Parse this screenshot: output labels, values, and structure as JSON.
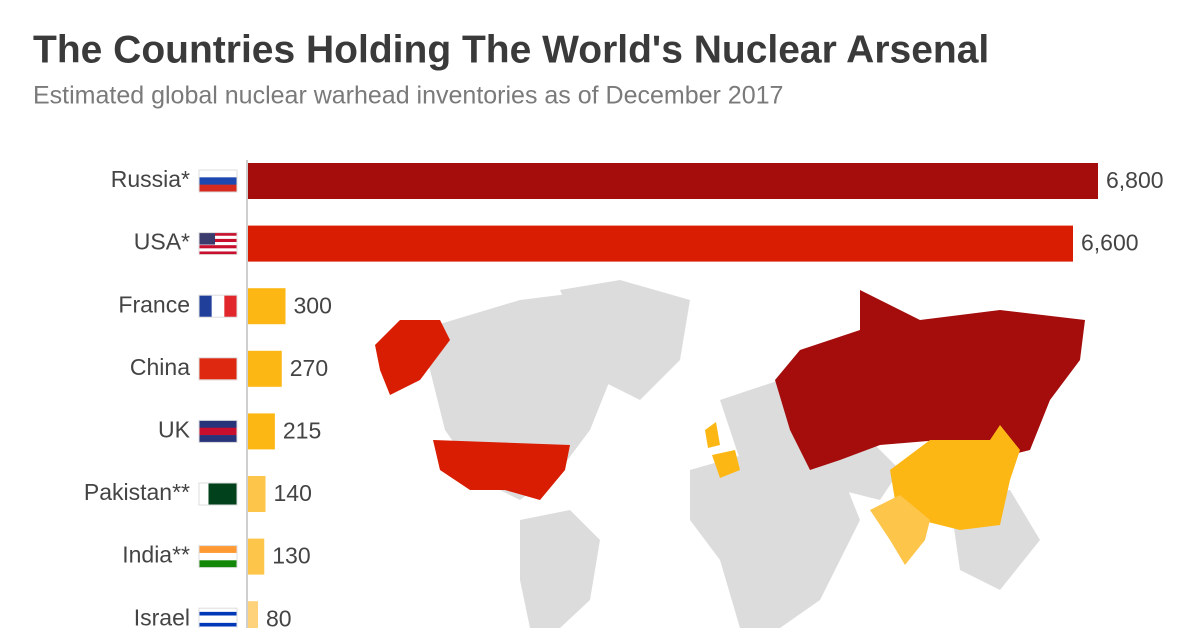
{
  "chart_data": {
    "type": "bar",
    "orientation": "horizontal",
    "title": "The Countries Holding The World's Nuclear Arsenal",
    "subtitle": "Estimated global nuclear warhead inventories as of December 2017",
    "categories": [
      "Russia*",
      "USA*",
      "France",
      "China",
      "UK",
      "Pakistan**",
      "India**",
      "Israel"
    ],
    "values": [
      6800,
      6600,
      300,
      270,
      215,
      140,
      130,
      80
    ],
    "value_labels": [
      "6,800",
      "6,600",
      "300",
      "270",
      "215",
      "140",
      "130",
      "80"
    ],
    "colors": [
      "#a50d0d",
      "#d91d02",
      "#fdb714",
      "#fdb714",
      "#fdb714",
      "#fdc54a",
      "#fdc54a",
      "#fdd27a"
    ]
  }
}
